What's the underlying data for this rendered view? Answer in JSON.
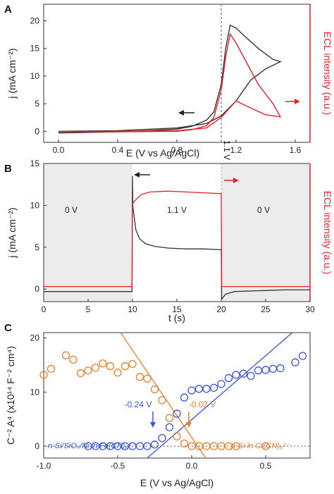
{
  "chart_data": [
    {
      "panel": "A",
      "type": "line",
      "xlabel": "E (V vs Ag/AgCl)",
      "ylabel": "j (mA cm⁻²)",
      "y2label": "ECL intensity (a.u.)",
      "xlim": [
        -0.1,
        1.7
      ],
      "ylim": [
        -2,
        23
      ],
      "xticks": [
        0.0,
        0.4,
        0.8,
        1.2,
        1.6
      ],
      "xticklabels": [
        "0.0",
        "0.4",
        "0.8",
        "1.2",
        "1.6"
      ],
      "yticks": [
        0,
        5,
        10,
        15,
        20
      ],
      "annotation": "1.1 V",
      "vline_x": 1.1,
      "colors": {
        "current": "#333333",
        "ecl": "#e8202a"
      },
      "series": [
        {
          "role": "current",
          "x": [
            0.0,
            0.2,
            0.4,
            0.6,
            0.8,
            0.9,
            1.0,
            1.05,
            1.1,
            1.13,
            1.16,
            1.2,
            1.25,
            1.35,
            1.45,
            1.5,
            1.4,
            1.3,
            1.2,
            1.1,
            1.0,
            0.8,
            0.4,
            0.0
          ],
          "y": [
            -0.3,
            -0.2,
            -0.1,
            0.1,
            0.4,
            0.9,
            2.0,
            3.5,
            8.5,
            15.0,
            19.2,
            18.7,
            17.4,
            15.0,
            13.0,
            12.6,
            11.3,
            9.3,
            5.5,
            2.8,
            1.4,
            0.6,
            0.1,
            0.0
          ]
        },
        {
          "role": "ecl",
          "x": [
            0.0,
            0.4,
            0.8,
            0.9,
            1.0,
            1.05,
            1.1,
            1.13,
            1.16,
            1.2,
            1.25,
            1.35,
            1.45,
            1.5,
            1.4,
            1.3,
            1.2,
            1.1,
            1.0,
            0.8,
            0.4,
            0.0
          ],
          "y": [
            -0.1,
            -0.1,
            0.0,
            0.3,
            1.0,
            2.5,
            7.5,
            13.5,
            17.6,
            16.0,
            13.5,
            8.5,
            5.0,
            2.6,
            3.0,
            4.2,
            5.5,
            2.5,
            0.6,
            0.1,
            0.0,
            -0.1
          ]
        }
      ]
    },
    {
      "panel": "B",
      "type": "line",
      "xlabel": "t (s)",
      "ylabel": "j (mA cm⁻²)",
      "y2label": "ECL intensity (a.u.)",
      "xlim": [
        0,
        30
      ],
      "ylim": [
        -1.5,
        15
      ],
      "xticks": [
        0,
        5,
        10,
        15,
        20,
        25,
        30
      ],
      "yticks": [
        0,
        5,
        10,
        15
      ],
      "regions": [
        "0 V",
        "1.1 V",
        "0 V"
      ],
      "colors": {
        "current": "#333333",
        "ecl": "#e8202a",
        "shade": "#ececec"
      },
      "series": [
        {
          "role": "current",
          "x": [
            0,
            5,
            9.95,
            10.0,
            10.05,
            10.4,
            10.8,
            11.5,
            12.5,
            14,
            16,
            18,
            19.95,
            20.0,
            20.05,
            20.5,
            21.5,
            24,
            27,
            30
          ],
          "y": [
            -0.3,
            -0.3,
            -0.3,
            13.5,
            9.8,
            7.0,
            6.0,
            5.4,
            5.1,
            4.9,
            4.8,
            4.8,
            4.7,
            4.7,
            -1.2,
            -0.6,
            -0.3,
            -0.2,
            -0.1,
            -0.1
          ]
        },
        {
          "role": "ecl",
          "x": [
            0,
            9.95,
            10.0,
            10.3,
            11,
            12,
            14,
            16,
            18,
            19.95,
            20.0,
            20.05,
            25,
            30
          ],
          "y": [
            0.3,
            0.3,
            10.2,
            10.6,
            11.3,
            11.6,
            11.7,
            11.6,
            11.5,
            11.4,
            11.4,
            0.3,
            0.3,
            0.3
          ]
        }
      ]
    },
    {
      "panel": "C",
      "type": "scatter",
      "xlabel": "E (V vs Ag/AgCl)",
      "ylabel": "C⁻² A⁴ (x10¹⁴ F⁻² cm⁴)",
      "xlim": [
        -1.0,
        0.8
      ],
      "ylim": [
        -2.2,
        21
      ],
      "xticks": [
        -1.0,
        -0.5,
        0.0,
        0.5
      ],
      "xticklabels": [
        "-1.0",
        "-0.5",
        "0.0",
        "0.5"
      ],
      "yticks": [
        0,
        10,
        20
      ],
      "colors": {
        "blue": "#3a55d9",
        "orange": "#ee7d2a"
      },
      "annotations": [
        {
          "text": "-0.24 V",
          "color": "blue"
        },
        {
          "text": "-0.02 V",
          "color": "orange"
        }
      ],
      "legend_left": "n-Si/SiOₓ/Ni in Fe(CN)₆⁴⁻",
      "legend_right": "p-Si in Cr(CN)₆³⁻",
      "series": [
        {
          "name": "n-Si/SiOₓ/Ni in Fe(CN)₆⁴⁻",
          "color": "blue",
          "x": [
            -0.7,
            -0.65,
            -0.6,
            -0.55,
            -0.5,
            -0.45,
            -0.4,
            -0.35,
            -0.3,
            -0.25,
            -0.2,
            -0.15,
            -0.1,
            -0.05,
            0.0,
            0.05,
            0.1,
            0.15,
            0.2,
            0.25,
            0.3,
            0.35,
            0.4,
            0.45,
            0.5,
            0.55,
            0.6,
            0.7,
            0.75
          ],
          "y": [
            0,
            0,
            0,
            0,
            0,
            0,
            0,
            0,
            0,
            0.3,
            1.5,
            3.5,
            6.0,
            9.0,
            10.3,
            10.6,
            10.6,
            10.8,
            11.5,
            12.6,
            13.2,
            13.4,
            13.0,
            14.0,
            14.1,
            14.3,
            14.4,
            15.5,
            16.7
          ]
        },
        {
          "name": "p-Si in Cr(CN)₆³⁻",
          "color": "orange",
          "x": [
            -1.0,
            -0.95,
            -0.85,
            -0.8,
            -0.75,
            -0.7,
            -0.65,
            -0.6,
            -0.55,
            -0.5,
            -0.45,
            -0.4,
            -0.35,
            -0.3,
            -0.25,
            -0.2,
            -0.15,
            -0.1,
            -0.05,
            0.0,
            0.05,
            0.1,
            0.15,
            0.2,
            0.25,
            0.3,
            0.5
          ],
          "y": [
            13.2,
            14.3,
            16.8,
            16.0,
            13.5,
            14.0,
            14.5,
            15.3,
            14.8,
            13.6,
            14.8,
            15.2,
            12.8,
            12.5,
            10.5,
            8.5,
            5.2,
            1.8,
            0.5,
            0,
            0,
            0,
            0,
            0,
            0,
            0,
            0
          ]
        }
      ],
      "fit_lines": [
        {
          "color": "blue",
          "x": [
            -0.3,
            0.68
          ],
          "y": [
            -2.2,
            21
          ]
        },
        {
          "color": "orange",
          "x": [
            -0.48,
            0.095
          ],
          "y": [
            21,
            -2.2
          ]
        }
      ]
    }
  ]
}
